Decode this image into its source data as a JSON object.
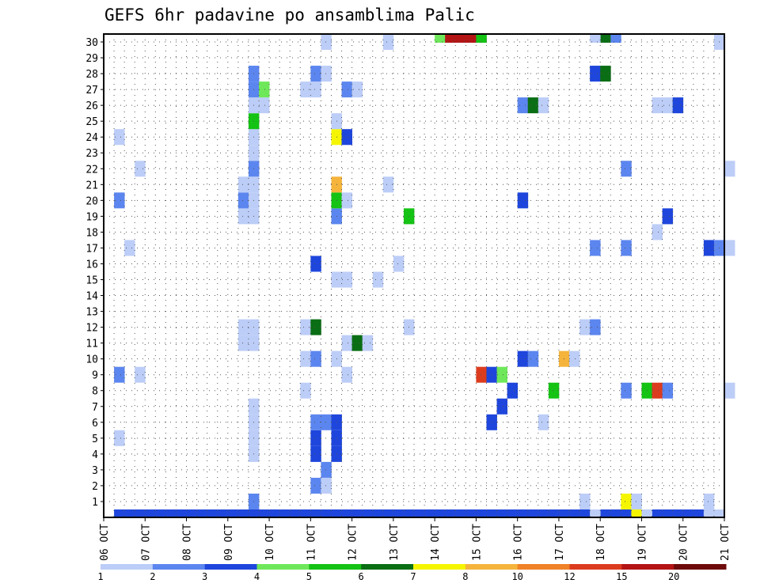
{
  "chart_data": {
    "type": "heatmap",
    "title": "GEFS 6hr padavine po ansamblima Palic",
    "x_tick_labels": [
      "06 OCT",
      "07 OCT",
      "08 OCT",
      "09 OCT",
      "10 OCT",
      "11 OCT",
      "12 OCT",
      "13 OCT",
      "14 OCT",
      "15 OCT",
      "16 OCT",
      "17 OCT",
      "18 OCT",
      "19 OCT",
      "20 OCT",
      "21 OCT"
    ],
    "y_tick_labels": [
      "1",
      "2",
      "3",
      "4",
      "5",
      "6",
      "7",
      "8",
      "9",
      "10",
      "11",
      "12",
      "13",
      "14",
      "15",
      "16",
      "17",
      "18",
      "19",
      "20",
      "21",
      "22",
      "23",
      "24",
      "25",
      "26",
      "27",
      "28",
      "29",
      "30"
    ],
    "xlim_days": [
      0,
      15
    ],
    "ylim_members": [
      0,
      30
    ],
    "grid": true,
    "legend": {
      "placement": "bottom",
      "tick_labels": [
        "1",
        "2",
        "3",
        "4",
        "5",
        "6",
        "7",
        "8",
        "10",
        "12",
        "15",
        "20"
      ],
      "colors": [
        "#bccdf7",
        "#5c86ef",
        "#1e46dc",
        "#6ee85a",
        "#14c314",
        "#0a6e14",
        "#f5f500",
        "#f5b43c",
        "#f08228",
        "#dc3c1e",
        "#b41414",
        "#6e0a0a"
      ]
    },
    "palette": [
      "#bccdf7",
      "#5c86ef",
      "#1e46dc",
      "#6ee85a",
      "#14c314",
      "#0a6e14",
      "#f5f500",
      "#f5b43c",
      "#f08228",
      "#dc3c1e",
      "#b41414",
      "#6e0a0a"
    ],
    "cell_unit_days": 0.25,
    "cell_fields": [
      "day_offset",
      "member",
      "color_index"
    ],
    "cells": [
      [
        0.25,
        0,
        2
      ],
      [
        0.5,
        0,
        2
      ],
      [
        0.75,
        0,
        2
      ],
      [
        1.0,
        0,
        2
      ],
      [
        1.25,
        0,
        2
      ],
      [
        1.5,
        0,
        2
      ],
      [
        1.75,
        0,
        2
      ],
      [
        2.0,
        0,
        2
      ],
      [
        2.25,
        0,
        2
      ],
      [
        2.5,
        0,
        2
      ],
      [
        2.75,
        0,
        2
      ],
      [
        3.0,
        0,
        2
      ],
      [
        3.25,
        0,
        2
      ],
      [
        3.5,
        0,
        2
      ],
      [
        3.75,
        0,
        2
      ],
      [
        4.0,
        0,
        2
      ],
      [
        4.25,
        0,
        2
      ],
      [
        4.5,
        0,
        2
      ],
      [
        4.75,
        0,
        2
      ],
      [
        5.0,
        0,
        2
      ],
      [
        5.25,
        0,
        2
      ],
      [
        5.5,
        0,
        2
      ],
      [
        5.75,
        0,
        2
      ],
      [
        6.0,
        0,
        2
      ],
      [
        6.25,
        0,
        2
      ],
      [
        6.5,
        0,
        2
      ],
      [
        6.75,
        0,
        2
      ],
      [
        7.0,
        0,
        2
      ],
      [
        7.25,
        0,
        2
      ],
      [
        7.5,
        0,
        2
      ],
      [
        7.75,
        0,
        2
      ],
      [
        8.0,
        0,
        2
      ],
      [
        8.25,
        0,
        2
      ],
      [
        8.5,
        0,
        2
      ],
      [
        8.75,
        0,
        2
      ],
      [
        9.0,
        0,
        2
      ],
      [
        9.25,
        0,
        2
      ],
      [
        9.5,
        0,
        2
      ],
      [
        9.75,
        0,
        2
      ],
      [
        10.0,
        0,
        2
      ],
      [
        10.25,
        0,
        2
      ],
      [
        10.5,
        0,
        2
      ],
      [
        10.75,
        0,
        2
      ],
      [
        11.0,
        0,
        2
      ],
      [
        11.25,
        0,
        2
      ],
      [
        11.5,
        0,
        2
      ],
      [
        11.75,
        0,
        2
      ],
      [
        12.0,
        0,
        2
      ],
      [
        12.25,
        0,
        2
      ],
      [
        12.5,
        0,
        2
      ],
      [
        12.75,
        0,
        2
      ],
      [
        13.0,
        0,
        2
      ],
      [
        13.25,
        0,
        2
      ],
      [
        13.5,
        0,
        2
      ],
      [
        13.75,
        0,
        2
      ],
      [
        14.0,
        0,
        2
      ],
      [
        14.25,
        0,
        2
      ],
      [
        14.5,
        0,
        2
      ],
      [
        14.75,
        0,
        2
      ],
      [
        11.75,
        0,
        0
      ],
      [
        12.75,
        0,
        6
      ],
      [
        13.0,
        0,
        0
      ],
      [
        14.5,
        0,
        0
      ],
      [
        14.75,
        0,
        0
      ],
      [
        3.5,
        1,
        1
      ],
      [
        3.5,
        4,
        0
      ],
      [
        3.5,
        5,
        0
      ],
      [
        3.5,
        6,
        0
      ],
      [
        3.5,
        7,
        0
      ],
      [
        3.25,
        20,
        0
      ],
      [
        3.25,
        19,
        0
      ],
      [
        3.5,
        11,
        0
      ],
      [
        3.25,
        11,
        0
      ],
      [
        3.5,
        12,
        0
      ],
      [
        3.25,
        12,
        0
      ],
      [
        3.5,
        19,
        0
      ],
      [
        3.25,
        20,
        1
      ],
      [
        3.5,
        20,
        0
      ],
      [
        3.25,
        21,
        0
      ],
      [
        3.5,
        21,
        0
      ],
      [
        3.5,
        22,
        1
      ],
      [
        3.5,
        23,
        0
      ],
      [
        3.5,
        24,
        0
      ],
      [
        3.5,
        25,
        4
      ],
      [
        3.5,
        26,
        0
      ],
      [
        3.75,
        26,
        0
      ],
      [
        3.5,
        27,
        1
      ],
      [
        3.75,
        27,
        3
      ],
      [
        3.5,
        28,
        1
      ],
      [
        5.0,
        2,
        1
      ],
      [
        5.25,
        2,
        0
      ],
      [
        5.25,
        3,
        1
      ],
      [
        5.0,
        4,
        2
      ],
      [
        5.5,
        4,
        2
      ],
      [
        5.0,
        5,
        2
      ],
      [
        5.5,
        5,
        2
      ],
      [
        5.0,
        6,
        1
      ],
      [
        5.25,
        6,
        1
      ],
      [
        5.5,
        6,
        2
      ],
      [
        4.75,
        8,
        0
      ],
      [
        4.75,
        10,
        0
      ],
      [
        5.0,
        10,
        1
      ],
      [
        5.5,
        10,
        0
      ],
      [
        4.75,
        12,
        0
      ],
      [
        5.0,
        12,
        5
      ],
      [
        5.5,
        15,
        0
      ],
      [
        5.0,
        16,
        2
      ],
      [
        5.5,
        19,
        1
      ],
      [
        5.5,
        20,
        4
      ],
      [
        5.75,
        20,
        0
      ],
      [
        5.5,
        21,
        7
      ],
      [
        5.5,
        24,
        6
      ],
      [
        5.75,
        24,
        2
      ],
      [
        5.5,
        25,
        0
      ],
      [
        4.75,
        27,
        0
      ],
      [
        5.0,
        27,
        0
      ],
      [
        5.75,
        27,
        1
      ],
      [
        6.0,
        27,
        0
      ],
      [
        5.0,
        28,
        1
      ],
      [
        5.25,
        28,
        0
      ],
      [
        5.25,
        30,
        0
      ],
      [
        5.75,
        9,
        0
      ],
      [
        5.75,
        11,
        0
      ],
      [
        6.0,
        11,
        5
      ],
      [
        6.25,
        11,
        0
      ],
      [
        6.5,
        15,
        0
      ],
      [
        5.75,
        15,
        0
      ],
      [
        6.75,
        30,
        0
      ],
      [
        7.25,
        12,
        0
      ],
      [
        7.0,
        16,
        0
      ],
      [
        7.25,
        19,
        4
      ],
      [
        6.75,
        21,
        0
      ],
      [
        0.25,
        5,
        0
      ],
      [
        0.25,
        9,
        1
      ],
      [
        0.75,
        9,
        0
      ],
      [
        0.5,
        17,
        0
      ],
      [
        0.25,
        20,
        1
      ],
      [
        0.75,
        22,
        0
      ],
      [
        0.25,
        24,
        0
      ],
      [
        9.0,
        9,
        9
      ],
      [
        9.25,
        9,
        2
      ],
      [
        9.5,
        9,
        3
      ],
      [
        9.25,
        6,
        2
      ],
      [
        9.5,
        7,
        2
      ],
      [
        9.75,
        8,
        2
      ],
      [
        8.0,
        31,
        3
      ],
      [
        8.25,
        31,
        10
      ],
      [
        8.5,
        31,
        10
      ],
      [
        8.75,
        31,
        10
      ],
      [
        9.0,
        31,
        4
      ],
      [
        10.0,
        10,
        2
      ],
      [
        10.25,
        10,
        1
      ],
      [
        10.0,
        20,
        2
      ],
      [
        10.0,
        26,
        1
      ],
      [
        10.25,
        26,
        5
      ],
      [
        10.5,
        26,
        0
      ],
      [
        10.5,
        6,
        0
      ],
      [
        10.75,
        8,
        4
      ],
      [
        11.0,
        10,
        7
      ],
      [
        11.25,
        10,
        0
      ],
      [
        11.5,
        12,
        0
      ],
      [
        11.75,
        12,
        1
      ],
      [
        11.75,
        17,
        1
      ],
      [
        11.75,
        28,
        2
      ],
      [
        12.0,
        28,
        5
      ],
      [
        12.0,
        31,
        5
      ],
      [
        12.25,
        31,
        1
      ],
      [
        11.75,
        31,
        0
      ],
      [
        12.5,
        8,
        1
      ],
      [
        12.5,
        17,
        1
      ],
      [
        13.0,
        8,
        4
      ],
      [
        13.25,
        8,
        9
      ],
      [
        13.5,
        8,
        1
      ],
      [
        12.5,
        22,
        1
      ],
      [
        13.25,
        18,
        0
      ],
      [
        13.5,
        19,
        2
      ],
      [
        13.25,
        26,
        0
      ],
      [
        13.5,
        26,
        0
      ],
      [
        13.75,
        26,
        2
      ],
      [
        14.5,
        17,
        2
      ],
      [
        14.75,
        17,
        1
      ],
      [
        14.75,
        30,
        0
      ],
      [
        15.0,
        8,
        0
      ],
      [
        15.0,
        22,
        0
      ],
      [
        15.0,
        17,
        0
      ],
      [
        11.5,
        1,
        0
      ],
      [
        12.5,
        1,
        6
      ],
      [
        12.75,
        1,
        0
      ],
      [
        14.5,
        1,
        0
      ]
    ]
  }
}
